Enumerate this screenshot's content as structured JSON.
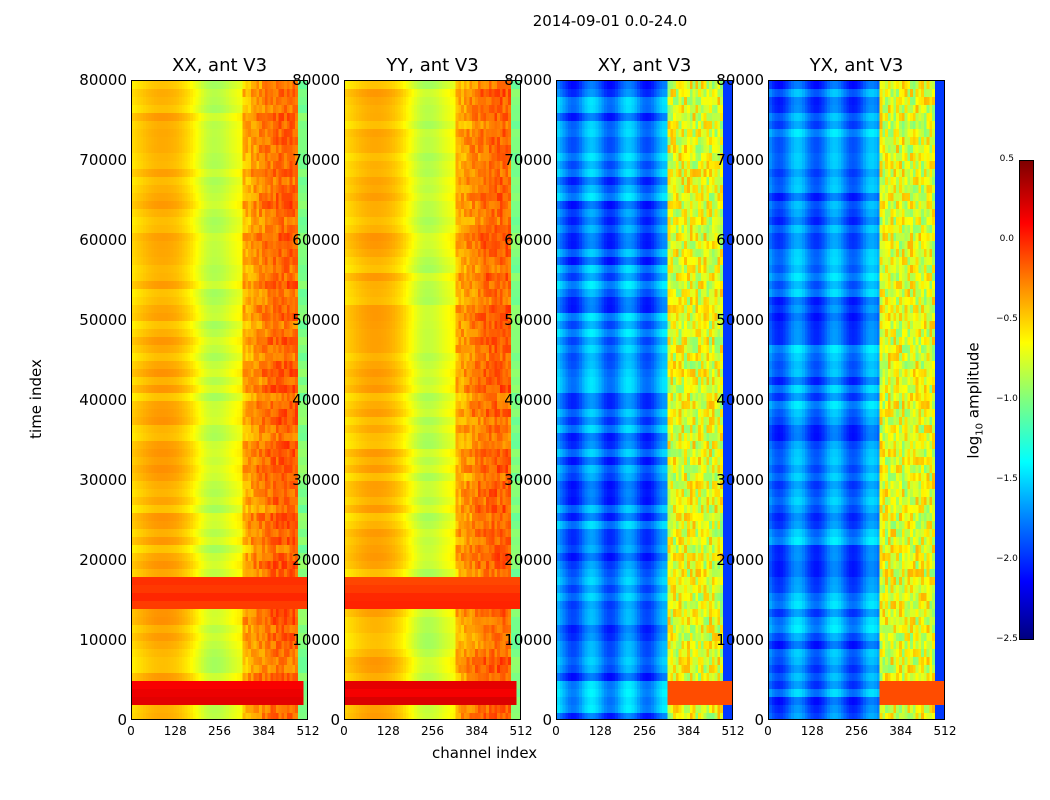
{
  "chart_data": {
    "type": "heatmap",
    "suptitle": "2014-09-01 0.0-24.0",
    "panels": [
      {
        "title": "XX, ant V3",
        "kind": "high"
      },
      {
        "title": "YY, ant V3",
        "kind": "high"
      },
      {
        "title": "XY, ant V3",
        "kind": "low"
      },
      {
        "title": "YX, ant V3",
        "kind": "low"
      }
    ],
    "xlabel": "channel index",
    "ylabel": "time index",
    "xlim": [
      0,
      512
    ],
    "ylim": [
      0,
      80000
    ],
    "xticks": [
      "0",
      "128",
      "256",
      "384",
      "512"
    ],
    "yticks": [
      "0",
      "10000",
      "20000",
      "30000",
      "40000",
      "50000",
      "60000",
      "70000",
      "80000"
    ],
    "colorbar": {
      "label": "log",
      "label_sub": "10",
      "label_rest": " amplitude",
      "range": [
        -2.5,
        0.5
      ],
      "ticks": [
        "0.5",
        "0.0",
        "−0.5",
        "−1.0",
        "−1.5",
        "−2.0",
        "−2.5"
      ],
      "colormap": "jet"
    }
  }
}
